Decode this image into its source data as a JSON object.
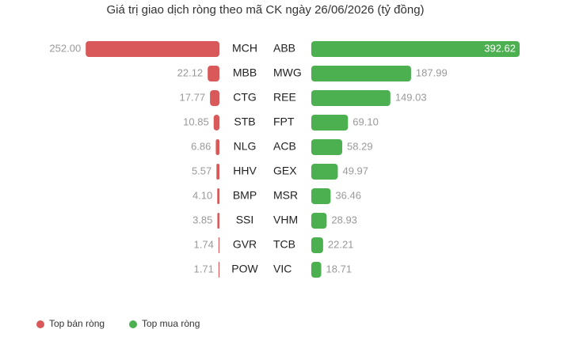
{
  "chart_data": {
    "type": "bar",
    "title": "Giá trị giao dịch ròng theo mã CK ngày 26/06/2026 (tỷ đồng)",
    "series": [
      {
        "name": "Top bán ròng",
        "color": "#d9595a",
        "categories": [
          "MCH",
          "MBB",
          "CTG",
          "STB",
          "NLG",
          "HHV",
          "BMP",
          "SSI",
          "GVR",
          "POW"
        ],
        "values": [
          252,
          22.12,
          17.77,
          10.85,
          6.86,
          5.57,
          4.1,
          3.85,
          1.74,
          1.71
        ],
        "value_labels": [
          "252.00",
          "22.12",
          "17.77",
          "10.85",
          "6.86",
          "5.57",
          "4.10",
          "3.85",
          "1.74",
          "1.71"
        ]
      },
      {
        "name": "Top mua ròng",
        "color": "#4caf50",
        "categories": [
          "ABB",
          "MWG",
          "REE",
          "FPT",
          "ACB",
          "GEX",
          "MSR",
          "VHM",
          "TCB",
          "VIC"
        ],
        "values": [
          392.62,
          187.99,
          149.03,
          69.1,
          58.29,
          49.97,
          36.46,
          28.93,
          22.21,
          18.71
        ],
        "value_labels": [
          "392.62",
          "187.99",
          "149.03",
          "69.10",
          "58.29",
          "49.97",
          "36.46",
          "28.93",
          "22.21",
          "18.71"
        ]
      }
    ]
  }
}
